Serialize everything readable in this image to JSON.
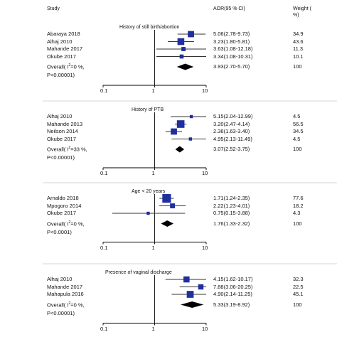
{
  "chart_data": {
    "type": "forest",
    "header": {
      "study": "Study",
      "effect": "AOR(95 % CI)",
      "weight_line1": "Weight (",
      "weight_line2": "%)"
    },
    "axis": {
      "scale": "log",
      "xlim": [
        0.1,
        10
      ],
      "ticks": [
        "0.1",
        "1",
        "10"
      ],
      "reference_line": 1
    },
    "panels": [
      {
        "title": "History of still birth/abortion",
        "studies": [
          {
            "name": "Abaraya 2018",
            "aor": 5.06,
            "lo": 2.78,
            "hi": 9.73,
            "ci_text": "5.06(2.78-9.73)",
            "weight": "34.9"
          },
          {
            "name": "Alhaj 2010",
            "aor": 3.23,
            "lo": 1.8,
            "hi": 5.81,
            "ci_text": "3.23(1.80-5.81)",
            "weight": "43.6"
          },
          {
            "name": "Mahande 2017",
            "aor": 3.63,
            "lo": 1.08,
            "hi": 12.18,
            "ci_text": "3.63(1.08-12.18)",
            "weight": "11.3"
          },
          {
            "name": "Okube 2017",
            "aor": 3.34,
            "lo": 1.08,
            "hi": 10.31,
            "ci_text": "3.34(1.08-10.31)",
            "weight": "10.1"
          }
        ],
        "overall": {
          "line1": "Overall( I",
          "sup": "2",
          "line1_rest": "=0 %,",
          "line2": "P<0.00001)",
          "aor": 3.93,
          "lo": 2.7,
          "hi": 5.7,
          "ci_text": "3.93(2.70-5.70)",
          "weight": "100"
        }
      },
      {
        "title": "History of PTB",
        "studies": [
          {
            "name": "Alhaj 2010",
            "aor": 5.15,
            "lo": 2.04,
            "hi": 12.99,
            "ci_text": "5.15(2.04-12.99)",
            "weight": "4.5"
          },
          {
            "name": "Mahande 2013",
            "aor": 3.2,
            "lo": 2.47,
            "hi": 4.14,
            "ci_text": "3.20(2.47-4.14)",
            "weight": "56.5"
          },
          {
            "name": "Neilson 2014",
            "aor": 2.36,
            "lo": 1.63,
            "hi": 3.4,
            "ci_text": "2.36(1.63-3.40)",
            "weight": "34.5"
          },
          {
            "name": "Okube 2017",
            "aor": 4.95,
            "lo": 2.13,
            "hi": 11.49,
            "ci_text": "4.95(2.13-11.49)",
            "weight": "4.5"
          }
        ],
        "overall": {
          "line1": "Overall( I",
          "sup": "2",
          "line1_rest": "=33 %,",
          "line2": "P<0.00001)",
          "aor": 3.07,
          "lo": 2.52,
          "hi": 3.75,
          "ci_text": "3.07(2.52-3.75)",
          "weight": "100"
        }
      },
      {
        "title": "Age < 20 years",
        "studies": [
          {
            "name": "Arnaldo 2018",
            "aor": 1.71,
            "lo": 1.24,
            "hi": 2.35,
            "ci_text": "1.71(1.24-2.35)",
            "weight": "77.6"
          },
          {
            "name": "Mpogoro 2014",
            "aor": 2.22,
            "lo": 1.23,
            "hi": 4.01,
            "ci_text": "2.22(1.23-4.01)",
            "weight": "18.2"
          },
          {
            "name": "Okube 2017",
            "aor": 0.75,
            "lo": 0.15,
            "hi": 3.88,
            "ci_text": "0.75(0.15-3.88)",
            "weight": "4.3"
          }
        ],
        "overall": {
          "line1": "Overall( I",
          "sup": "2",
          "line1_rest": "=0 %,",
          "line2": "P<0.0001)",
          "aor": 1.76,
          "lo": 1.33,
          "hi": 2.32,
          "ci_text": "1.76(1.33-2.32)",
          "weight": "100"
        }
      },
      {
        "title": "Presence of vaginal discharge",
        "studies": [
          {
            "name": "Alhaj 2010",
            "aor": 4.15,
            "lo": 1.62,
            "hi": 10.17,
            "ci_text": "4.15(1.62-10.17)",
            "weight": "32.3"
          },
          {
            "name": "Mahande 2017",
            "aor": 7.88,
            "lo": 3.06,
            "hi": 20.25,
            "ci_text": "7.88(3.06-20.25)",
            "weight": "22.5"
          },
          {
            "name": "Mahapula 2016",
            "aor": 4.9,
            "lo": 2.14,
            "hi": 11.25,
            "ci_text": "4.90(2.14-11.25)",
            "weight": "45.1"
          }
        ],
        "overall": {
          "line1": "Overall( I",
          "sup": "2",
          "line1_rest": "=0 %,",
          "line2": "P<0.00001)",
          "aor": 5.33,
          "lo": 3.19,
          "hi": 8.92,
          "ci_text": "5.33(3.19-8.92)",
          "weight": "100"
        }
      }
    ],
    "colors": {
      "marker": "#1f2f9e",
      "line": "#333333",
      "diamond": "#000000",
      "separator": "#c8c8c8"
    }
  }
}
